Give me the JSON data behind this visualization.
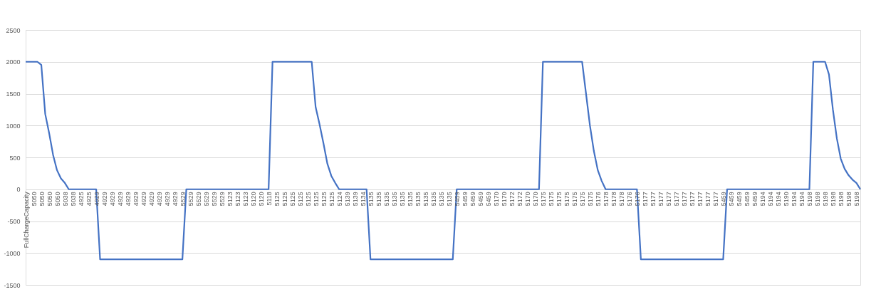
{
  "chart_data": {
    "type": "line",
    "categories": [
      "FullChargeCapacity",
      null,
      "5050",
      null,
      "5050",
      null,
      "5050",
      null,
      "5050",
      null,
      "5038",
      null,
      "5038",
      null,
      "4925",
      null,
      "4925",
      null,
      "4929",
      null,
      "4929",
      null,
      "4929",
      null,
      "4929",
      null,
      "4929",
      null,
      "4929",
      null,
      "4929",
      null,
      "4929",
      null,
      "4929",
      null,
      "4929",
      null,
      "4929",
      null,
      "5529",
      null,
      "5529",
      null,
      "5529",
      null,
      "5529",
      null,
      "5529",
      null,
      "5529",
      null,
      "5123",
      null,
      "5123",
      null,
      "5123",
      null,
      "5120",
      null,
      "5120",
      null,
      "5118",
      null,
      "5125",
      null,
      "5125",
      null,
      "5125",
      null,
      "5125",
      null,
      "5125",
      null,
      "5125",
      null,
      "5125",
      null,
      "5125",
      null,
      "5124",
      null,
      "5139",
      null,
      "5139",
      null,
      "5134",
      null,
      "5135",
      null,
      "5135",
      null,
      "5135",
      null,
      "5135",
      null,
      "5135",
      null,
      "5135",
      null,
      "5135",
      null,
      "5135",
      null,
      "5135",
      null,
      "5135",
      null,
      "5135",
      null,
      "5459",
      null,
      "5459",
      null,
      "5459",
      null,
      "5459",
      null,
      "5459",
      null,
      "5170",
      null,
      "5170",
      null,
      "5172",
      null,
      "5172",
      null,
      "5170",
      null,
      "5170",
      null,
      "5175",
      null,
      "5175",
      null,
      "5175",
      null,
      "5175",
      null,
      "5175",
      null,
      "5175",
      null,
      "5175",
      null,
      "5176",
      null,
      "5178",
      null,
      "5178",
      null,
      "5178",
      null,
      "5176",
      null,
      "5176",
      null,
      "5177",
      null,
      "5177",
      null,
      "5177",
      null,
      "5177",
      null,
      "5177",
      null,
      "5177",
      null,
      "5177",
      null,
      "5177",
      null,
      "5177",
      null,
      "5177",
      null,
      "5459",
      null,
      "5459",
      null,
      "5459",
      null,
      "5459",
      null,
      "5459",
      null,
      "5194",
      null,
      "5194",
      null,
      "5194",
      null,
      "5190",
      null,
      "5194",
      null,
      "5194",
      null,
      "5198",
      null,
      "5198",
      null,
      "5198",
      null,
      "5198",
      null,
      "5198",
      null,
      "5198",
      null,
      "5198",
      null
    ],
    "values": [
      2000,
      2000,
      2000,
      2000,
      1950,
      1180,
      880,
      540,
      300,
      170,
      100,
      0,
      0,
      0,
      0,
      0,
      0,
      0,
      0,
      -1100,
      -1100,
      -1100,
      -1100,
      -1100,
      -1100,
      -1100,
      -1100,
      -1100,
      -1100,
      -1100,
      -1100,
      -1100,
      -1100,
      -1100,
      -1100,
      -1100,
      -1100,
      -1100,
      -1100,
      -1100,
      -1100,
      0,
      0,
      0,
      0,
      0,
      0,
      0,
      0,
      0,
      0,
      0,
      0,
      0,
      0,
      0,
      0,
      0,
      0,
      0,
      0,
      0,
      0,
      2000,
      2000,
      2000,
      2000,
      2000,
      2000,
      2000,
      2000,
      2000,
      2000,
      2000,
      1290,
      1020,
      720,
      400,
      210,
      100,
      0,
      0,
      0,
      0,
      0,
      0,
      0,
      0,
      -1100,
      -1100,
      -1100,
      -1100,
      -1100,
      -1100,
      -1100,
      -1100,
      -1100,
      -1100,
      -1100,
      -1100,
      -1100,
      -1100,
      -1100,
      -1100,
      -1100,
      -1100,
      -1100,
      -1100,
      -1100,
      -1100,
      0,
      0,
      0,
      0,
      0,
      0,
      0,
      0,
      0,
      0,
      0,
      0,
      0,
      0,
      0,
      0,
      0,
      0,
      0,
      0,
      0,
      0,
      2000,
      2000,
      2000,
      2000,
      2000,
      2000,
      2000,
      2000,
      2000,
      2000,
      2000,
      1500,
      1000,
      600,
      300,
      130,
      0,
      0,
      0,
      0,
      0,
      0,
      0,
      0,
      0,
      -1100,
      -1100,
      -1100,
      -1100,
      -1100,
      -1100,
      -1100,
      -1100,
      -1100,
      -1100,
      -1100,
      -1100,
      -1100,
      -1100,
      -1100,
      -1100,
      -1100,
      -1100,
      -1100,
      -1100,
      -1100,
      -1100,
      0,
      0,
      0,
      0,
      0,
      0,
      0,
      0,
      0,
      0,
      0,
      0,
      0,
      0,
      0,
      0,
      0,
      0,
      0,
      0,
      0,
      0,
      2000,
      2000,
      2000,
      2000,
      1800,
      1250,
      800,
      480,
      320,
      220,
      150,
      100,
      0
    ],
    "color": "#4472c4",
    "ylim": [
      -1500,
      2500
    ],
    "yticks": [
      -1500,
      -1000,
      -500,
      0,
      500,
      1000,
      1500,
      2000,
      2500
    ],
    "grid": "y"
  }
}
